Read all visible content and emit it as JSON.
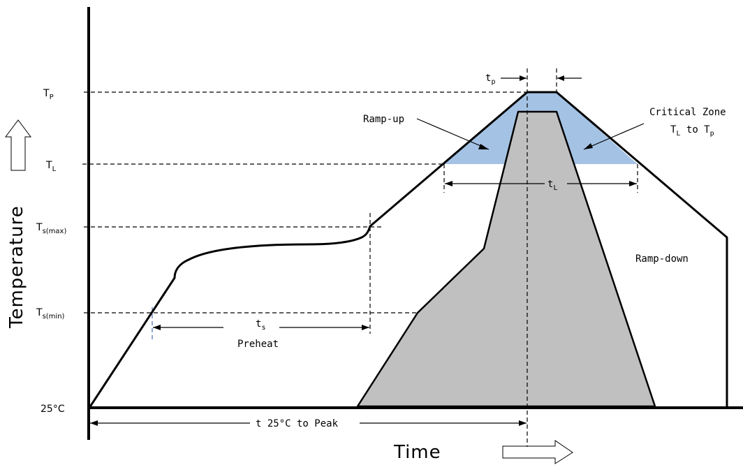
{
  "axes": {
    "y_title": "Temperature",
    "x_title": "Time"
  },
  "y_levels": {
    "tp": {
      "main": "T",
      "sub": "P"
    },
    "tl": {
      "main": "T",
      "sub": "L"
    },
    "ts_max": {
      "main": "T",
      "sub": "s(max)"
    },
    "ts_min": {
      "main": "T",
      "sub": "s(min)"
    },
    "base": "25°C"
  },
  "labels": {
    "tp_width": {
      "main": "t",
      "sub": "p"
    },
    "ramp_up": "Ramp-up",
    "critical_zone_line1": "Critical Zone",
    "critical_zone_line2": {
      "main": "T",
      "sub": "L",
      "mid": " to T",
      "sub2": "p"
    },
    "tl_width": {
      "main": "t",
      "sub": "L"
    },
    "ts_width": {
      "main": "t",
      "sub": "s"
    },
    "preheat": "Preheat",
    "ramp_down": "Ramp-down",
    "time_to_peak": "t  25°C  to Peak"
  },
  "colors": {
    "critical_zone": "#a4c2e4",
    "body": "#c0c0c0",
    "line": "#000000"
  }
}
